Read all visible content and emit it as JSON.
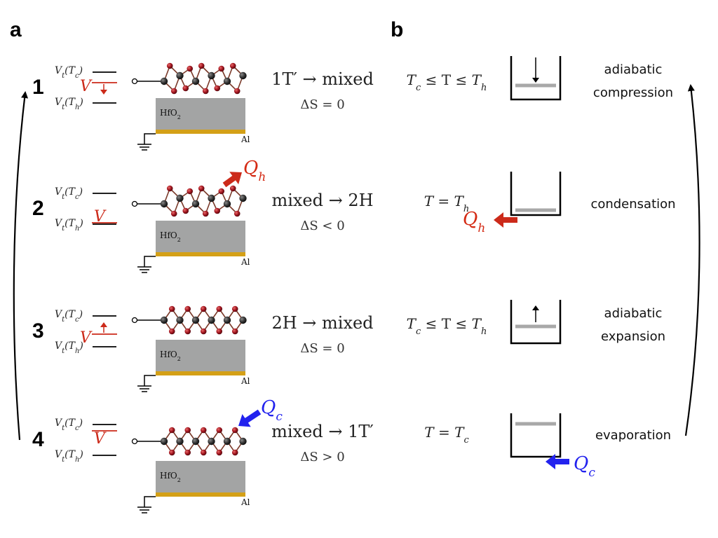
{
  "panels": {
    "a": "a",
    "b": "b"
  },
  "levels": {
    "tc": "V",
    "tc_sub": "t",
    "tc_arg": "(T",
    "tc_argsub": "c",
    "th_argsub": "h",
    "close": ")",
    "v": "V"
  },
  "device": {
    "oxide": "HfO",
    "oxide_sub": "2",
    "metal": "Al"
  },
  "heat": {
    "q": "Q",
    "h_sub": "h",
    "c_sub": "c"
  },
  "rows": [
    {
      "num": "1",
      "transition": "1T′ → mixed",
      "entropy": "ΔS = 0",
      "temp": {
        "pre": "T",
        "pre_sub": "c",
        "mid": " ≤ T ≤ ",
        "post": "T",
        "post_sub": "h"
      },
      "process": [
        "adiabatic",
        "compression"
      ]
    },
    {
      "num": "2",
      "transition": "mixed → 2H",
      "entropy": "ΔS < 0",
      "temp": {
        "pre": "T",
        "pre_sub": "",
        "mid": " = ",
        "post": "T",
        "post_sub": "h"
      },
      "process": [
        "condensation"
      ]
    },
    {
      "num": "3",
      "transition": "2H → mixed",
      "entropy": "ΔS = 0",
      "temp": {
        "pre": "T",
        "pre_sub": "c",
        "mid": " ≤ T ≤ ",
        "post": "T",
        "post_sub": "h"
      },
      "process": [
        "adiabatic",
        "expansion"
      ]
    },
    {
      "num": "4",
      "transition": "mixed → 1T′",
      "entropy": "ΔS > 0",
      "temp": {
        "pre": "T",
        "pre_sub": "",
        "mid": " = ",
        "post": "T",
        "post_sub": "c"
      },
      "process": [
        "evaporation"
      ]
    }
  ],
  "colors": {
    "red": "#cc2a1a",
    "blue": "#2222ee",
    "oxide": "#a3a4a4",
    "metal": "#d4a017",
    "atom_dark": "#333333",
    "atom_red": "#a0141e",
    "piston": "#a8a8a8"
  }
}
